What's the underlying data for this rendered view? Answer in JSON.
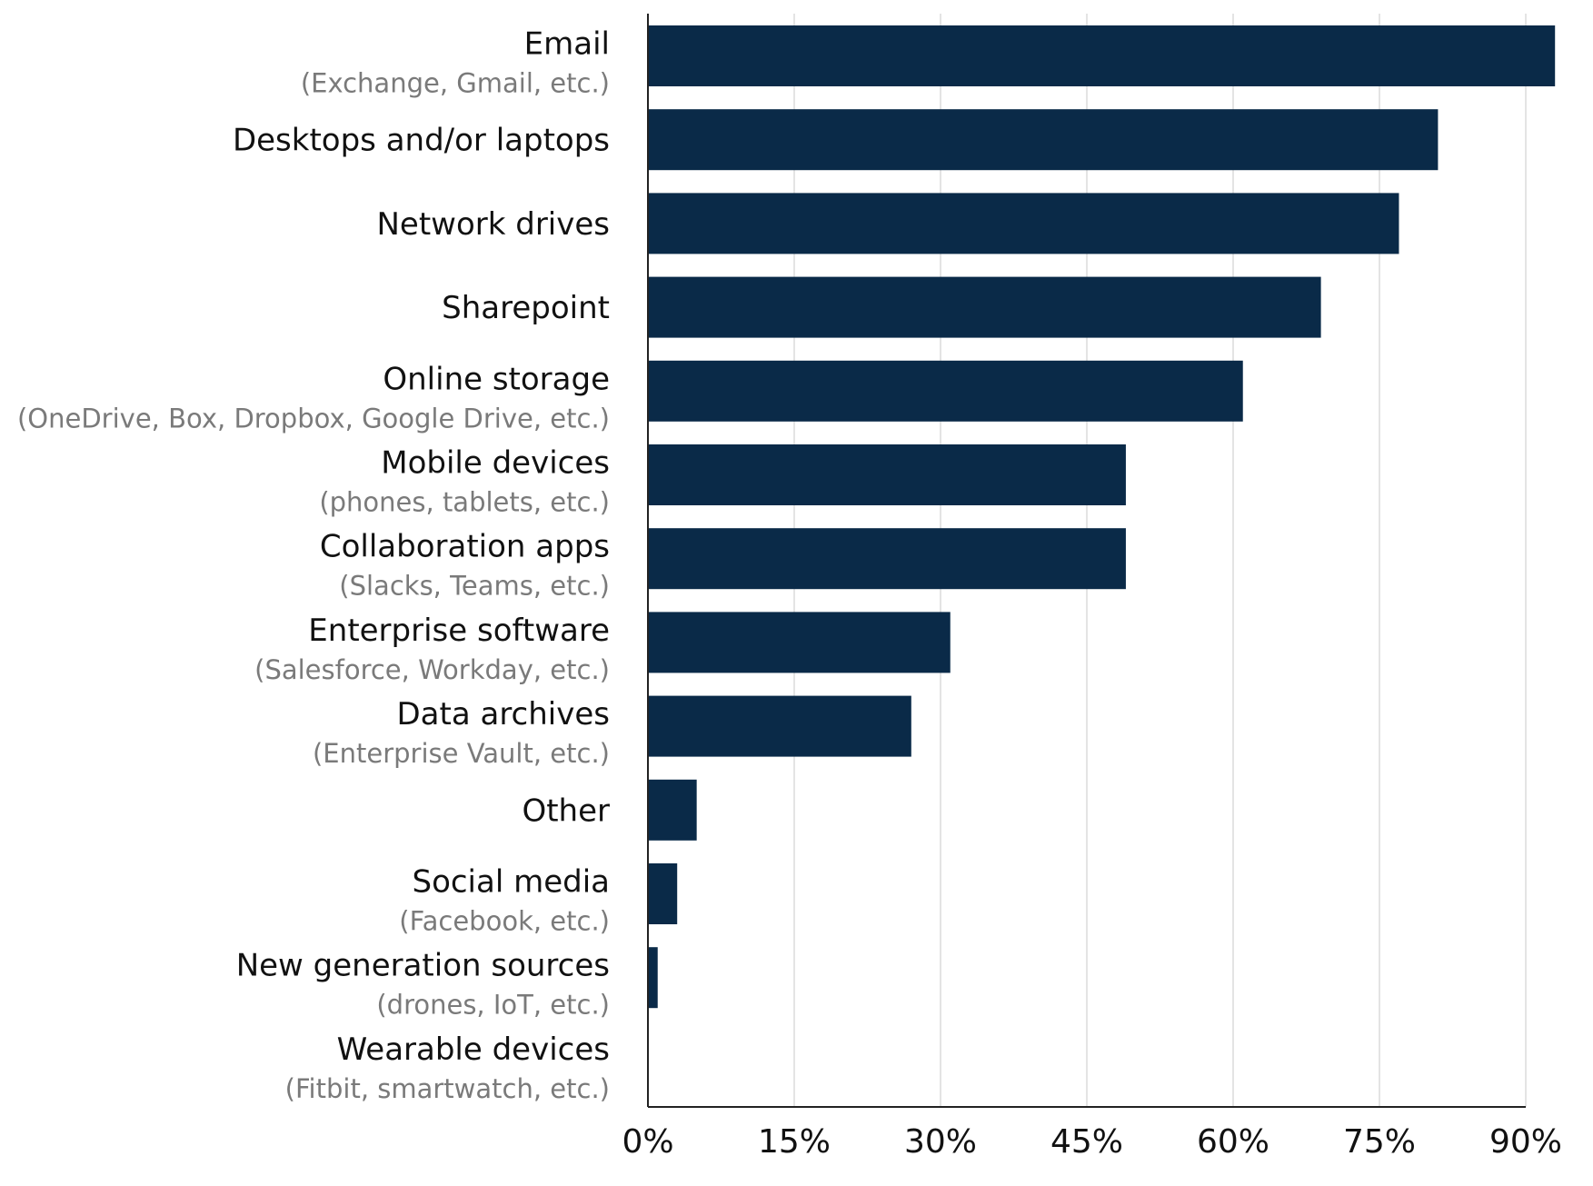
{
  "chart_data": {
    "type": "bar",
    "orientation": "horizontal",
    "categories": [
      "Email",
      "Desktops and/or laptops",
      "Network drives",
      "Sharepoint",
      "Online storage",
      "Mobile devices",
      "Collaboration apps",
      "Enterprise software",
      "Data archives",
      "Other",
      "Social media",
      "New generation sources",
      "Wearable devices"
    ],
    "subcategories": [
      "(Exchange, Gmail, etc.)",
      "",
      "",
      "",
      "(OneDrive, Box, Dropbox, Google Drive, etc.)",
      "(phones, tablets, etc.)",
      "(Slacks, Teams, etc.)",
      "(Salesforce, Workday, etc.)",
      "(Enterprise Vault, etc.)",
      "",
      "(Facebook, etc.)",
      "(drones, IoT, etc.)",
      "(Fitbit, smartwatch, etc.)"
    ],
    "values": [
      93,
      81,
      77,
      69,
      61,
      49,
      49,
      31,
      27,
      5,
      3,
      1,
      0
    ],
    "xlim": [
      0,
      90
    ],
    "xticks": [
      0,
      15,
      30,
      45,
      60,
      75,
      90
    ],
    "xtick_labels": [
      "0%",
      "15%",
      "30%",
      "45%",
      "60%",
      "75%",
      "90%"
    ],
    "grid": "vertical",
    "bar_color": "#0a2a48",
    "title": "",
    "xlabel": "",
    "ylabel": ""
  }
}
